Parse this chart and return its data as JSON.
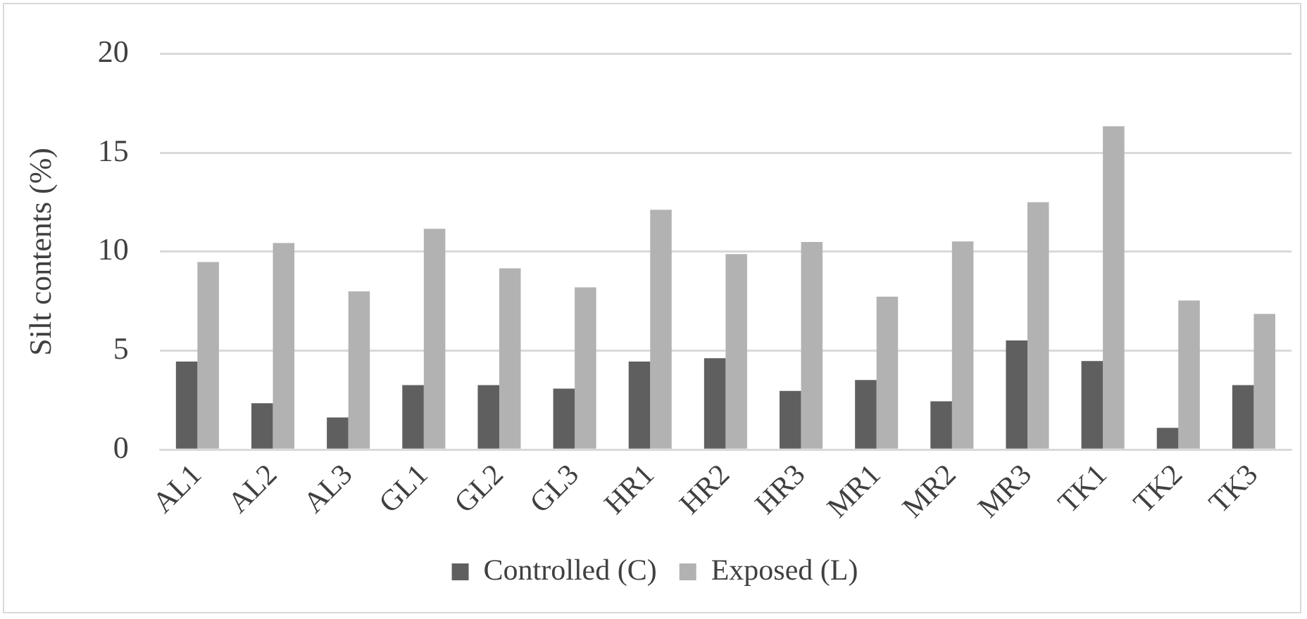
{
  "chart_data": {
    "type": "bar",
    "ylabel": "Silt contents (%)",
    "categories": [
      "AL1",
      "AL2",
      "AL3",
      "GL1",
      "GL2",
      "GL3",
      "HR1",
      "HR2",
      "HR3",
      "MR1",
      "MR2",
      "MR3",
      "TK1",
      "TK2",
      "TK3"
    ],
    "series": [
      {
        "name": "Controlled (C)",
        "color": "#5f5f5f",
        "values": [
          4.45,
          2.35,
          1.63,
          3.26,
          3.26,
          3.08,
          4.45,
          4.62,
          2.97,
          3.52,
          2.44,
          5.52,
          4.48,
          1.1,
          3.26
        ]
      },
      {
        "name": "Exposed (L)",
        "color": "#b2b2b2",
        "values": [
          9.48,
          10.44,
          8.0,
          11.16,
          9.16,
          8.2,
          12.12,
          9.88,
          10.49,
          7.73,
          10.52,
          12.5,
          16.34,
          7.53,
          6.86
        ]
      }
    ],
    "ylim": [
      0,
      20
    ],
    "yticks": [
      0,
      5,
      10,
      15,
      20
    ],
    "grid": "y",
    "legend": "bottom"
  }
}
